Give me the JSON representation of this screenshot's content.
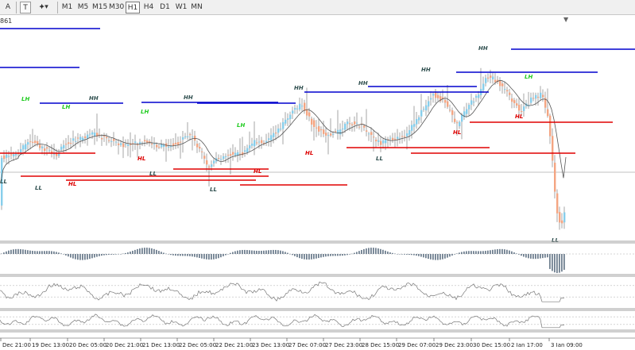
{
  "toolbar": {
    "text_tool": "A",
    "label_tool": "T",
    "shapes_tool": "⯌▾",
    "timeframes": [
      "M1",
      "M5",
      "M15",
      "M30",
      "H1",
      "H4",
      "D1",
      "W1",
      "MN"
    ],
    "active_timeframe": "H1"
  },
  "price_label": "861",
  "chart_data": {
    "type": "candlestick",
    "title": "",
    "time_axis": [
      "Dec 21:00",
      "19 Dec 13:00",
      "20 Dec 05:00",
      "20 Dec 21:00",
      "21 Dec 13:00",
      "22 Dec 05:00",
      "22 Dec 21:00",
      "23 Dec 13:00",
      "27 Dec 07:00",
      "27 Dec 23:00",
      "28 Dec 15:00",
      "29 Dec 07:00",
      "29 Dec 23:00",
      "30 Dec 15:00",
      "2 Jan 17:00",
      "3 Jan 09:00"
    ],
    "swing_labels": [
      {
        "text": "LL",
        "kind": "low"
      },
      {
        "text": "LH",
        "kind": "lower-high"
      },
      {
        "text": "LH",
        "kind": "lower-high"
      },
      {
        "text": "LL",
        "kind": "low"
      },
      {
        "text": "HH",
        "kind": "high"
      },
      {
        "text": "HL",
        "kind": "higher-low"
      },
      {
        "text": "LH",
        "kind": "lower-high"
      },
      {
        "text": "HL",
        "kind": "higher-low"
      },
      {
        "text": "LL",
        "kind": "low"
      },
      {
        "text": "HH",
        "kind": "high"
      },
      {
        "text": "LL",
        "kind": "low"
      },
      {
        "text": "LH",
        "kind": "lower-high"
      },
      {
        "text": "HL",
        "kind": "higher-low"
      },
      {
        "text": "HH",
        "kind": "high"
      },
      {
        "text": "HL",
        "kind": "higher-low"
      },
      {
        "text": "HH",
        "kind": "high"
      },
      {
        "text": "LL",
        "kind": "low"
      },
      {
        "text": "HH",
        "kind": "high"
      },
      {
        "text": "HL",
        "kind": "higher-low"
      },
      {
        "text": "HH",
        "kind": "high"
      },
      {
        "text": "HL",
        "kind": "higher-low"
      },
      {
        "text": "LH",
        "kind": "lower-high"
      },
      {
        "text": "LL",
        "kind": "low"
      }
    ],
    "subwindows": [
      "histogram oscillator",
      "line oscillator",
      "line oscillator"
    ],
    "colors": {
      "bull": "#87ceeb",
      "bear": "#f4a582",
      "resistance": "#0000cd",
      "support": "#e00000",
      "moving_average": "#555555",
      "label_high": "#2f4f4f",
      "label_lower_high": "#22cc22",
      "label_higher_low": "#dd0000",
      "histogram": "#708090"
    }
  }
}
